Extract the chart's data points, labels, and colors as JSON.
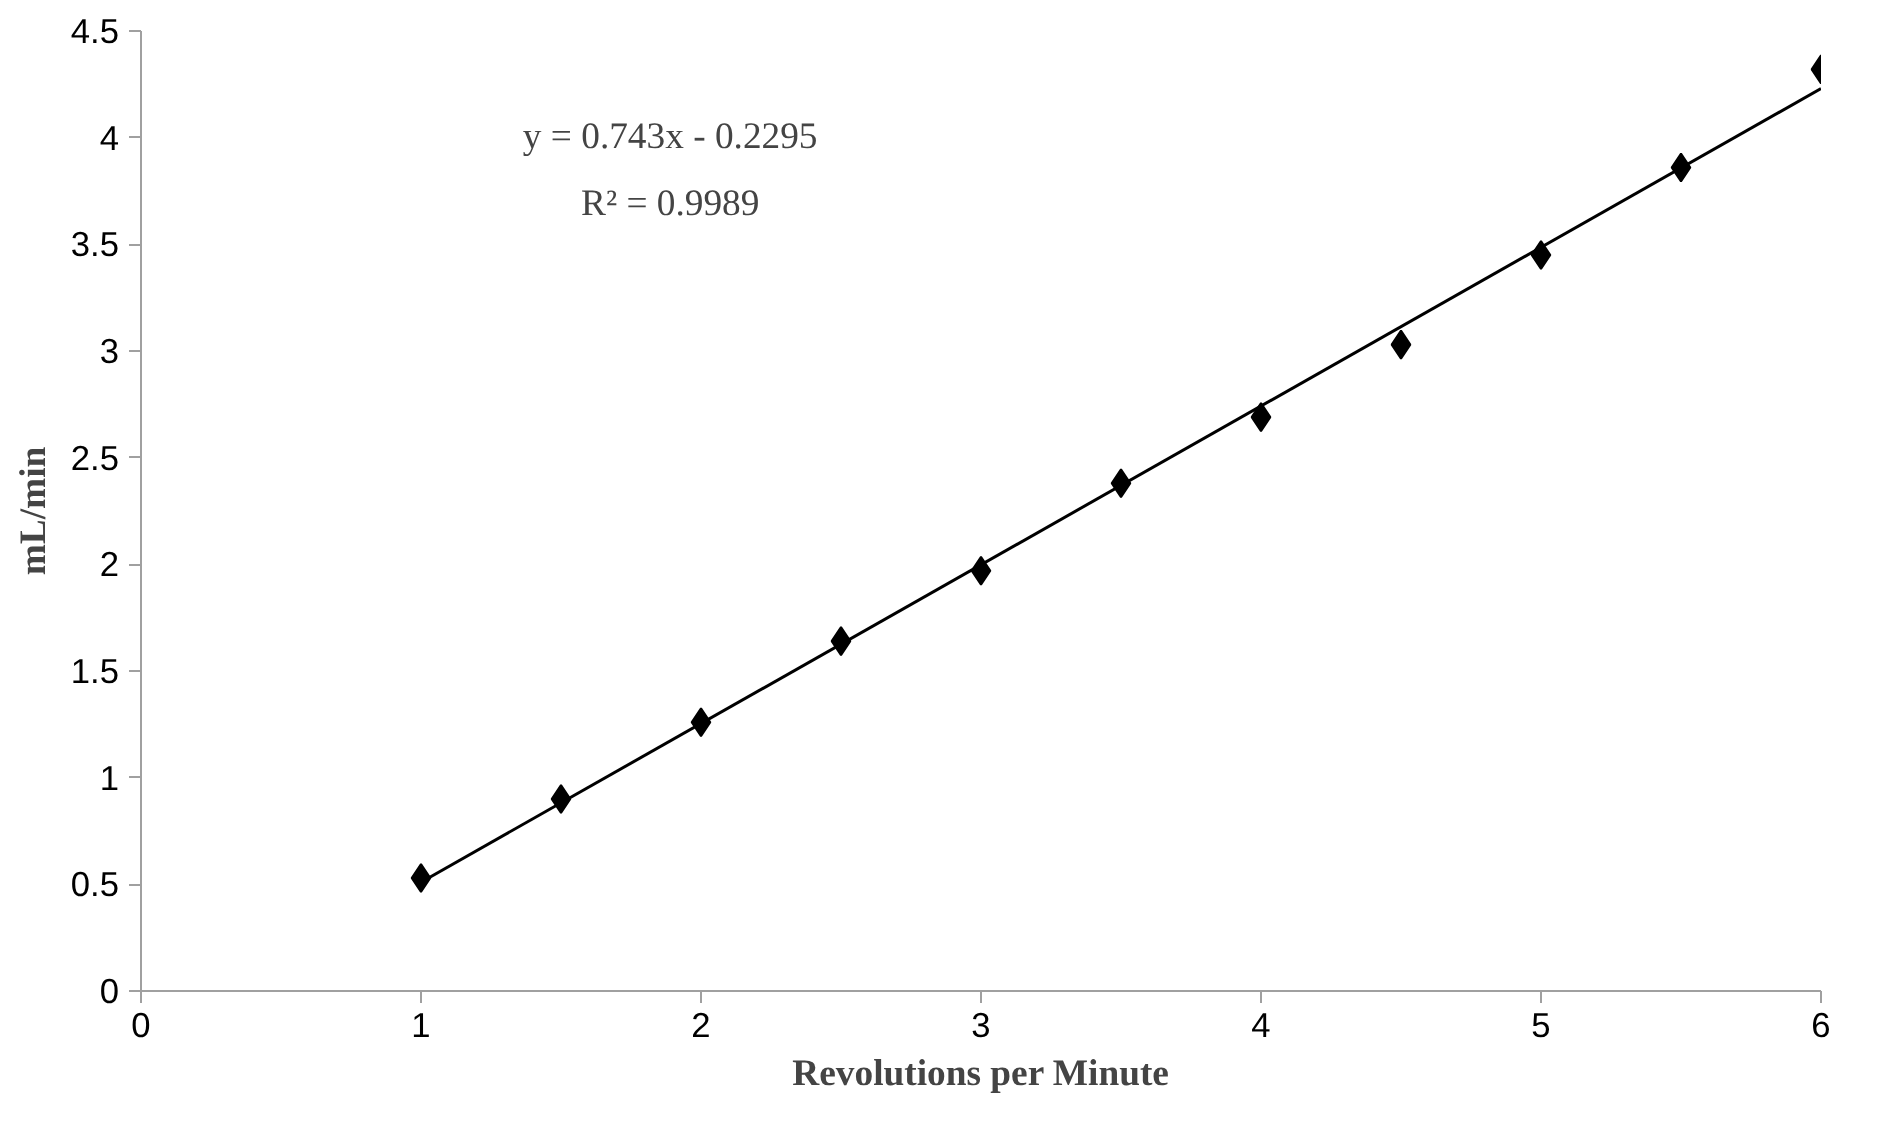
{
  "chart_data": {
    "type": "scatter",
    "xlabel": "Revolutions per Minute",
    "ylabel": "mL/min",
    "x": [
      1,
      1.5,
      2,
      2.5,
      3,
      3.5,
      4,
      4.5,
      5,
      5.5,
      6
    ],
    "series": [
      {
        "color": "#000000",
        "marker": "diamond",
        "values": [
          0.53,
          0.9,
          1.26,
          1.64,
          1.97,
          2.38,
          2.69,
          3.03,
          3.45,
          3.86,
          4.32
        ]
      },
      {
        "type": "line",
        "color": "#000000",
        "marker": "none",
        "x": [
          1,
          6
        ],
        "values": [
          0.51,
          4.23
        ]
      }
    ],
    "annotations": [
      "y = 0.743x - 0.2295",
      "R² = 0.9989"
    ],
    "xlim": [
      0,
      6
    ],
    "ylim": [
      0,
      4.5
    ],
    "xticks": [
      0,
      1,
      2,
      3,
      4,
      5,
      6
    ],
    "yticks": [
      0,
      0.5,
      1,
      1.5,
      2,
      2.5,
      3,
      3.5,
      4,
      4.5
    ]
  }
}
